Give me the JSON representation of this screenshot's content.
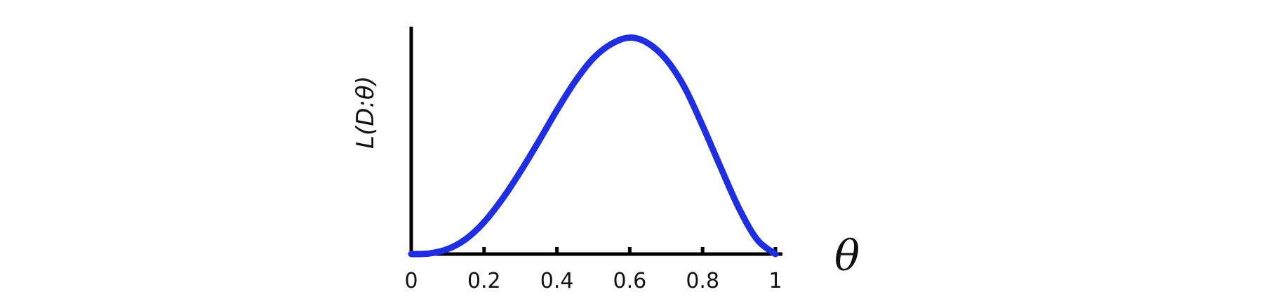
{
  "chart_data": {
    "type": "line",
    "title": "",
    "xlabel": "θ",
    "ylabel": "L(D:θ)",
    "xlim": [
      0,
      1
    ],
    "ylim": [
      0,
      0.035
    ],
    "x_ticks": [
      0,
      0.2,
      0.4,
      0.6,
      0.8,
      1
    ],
    "x_tick_labels": [
      "0",
      "0.2",
      "0.4",
      "0.6",
      "0.8",
      "1"
    ],
    "y_ticks_shown": false,
    "grid": false,
    "legend": "none",
    "series": [
      {
        "x": [
          0,
          0.05,
          0.1,
          0.15,
          0.2,
          0.25,
          0.3,
          0.35,
          0.4,
          0.45,
          0.5,
          0.55,
          0.6,
          0.65,
          0.7,
          0.75,
          0.8,
          0.85,
          0.9,
          0.95,
          1
        ],
        "y": [
          0,
          0.0001,
          0.0008,
          0.0024,
          0.0051,
          0.0088,
          0.0132,
          0.018,
          0.023,
          0.0276,
          0.0313,
          0.0336,
          0.0346,
          0.0337,
          0.0311,
          0.0267,
          0.0205,
          0.0138,
          0.0073,
          0.0023,
          0
        ],
        "color": "#1f2ee0"
      }
    ]
  }
}
